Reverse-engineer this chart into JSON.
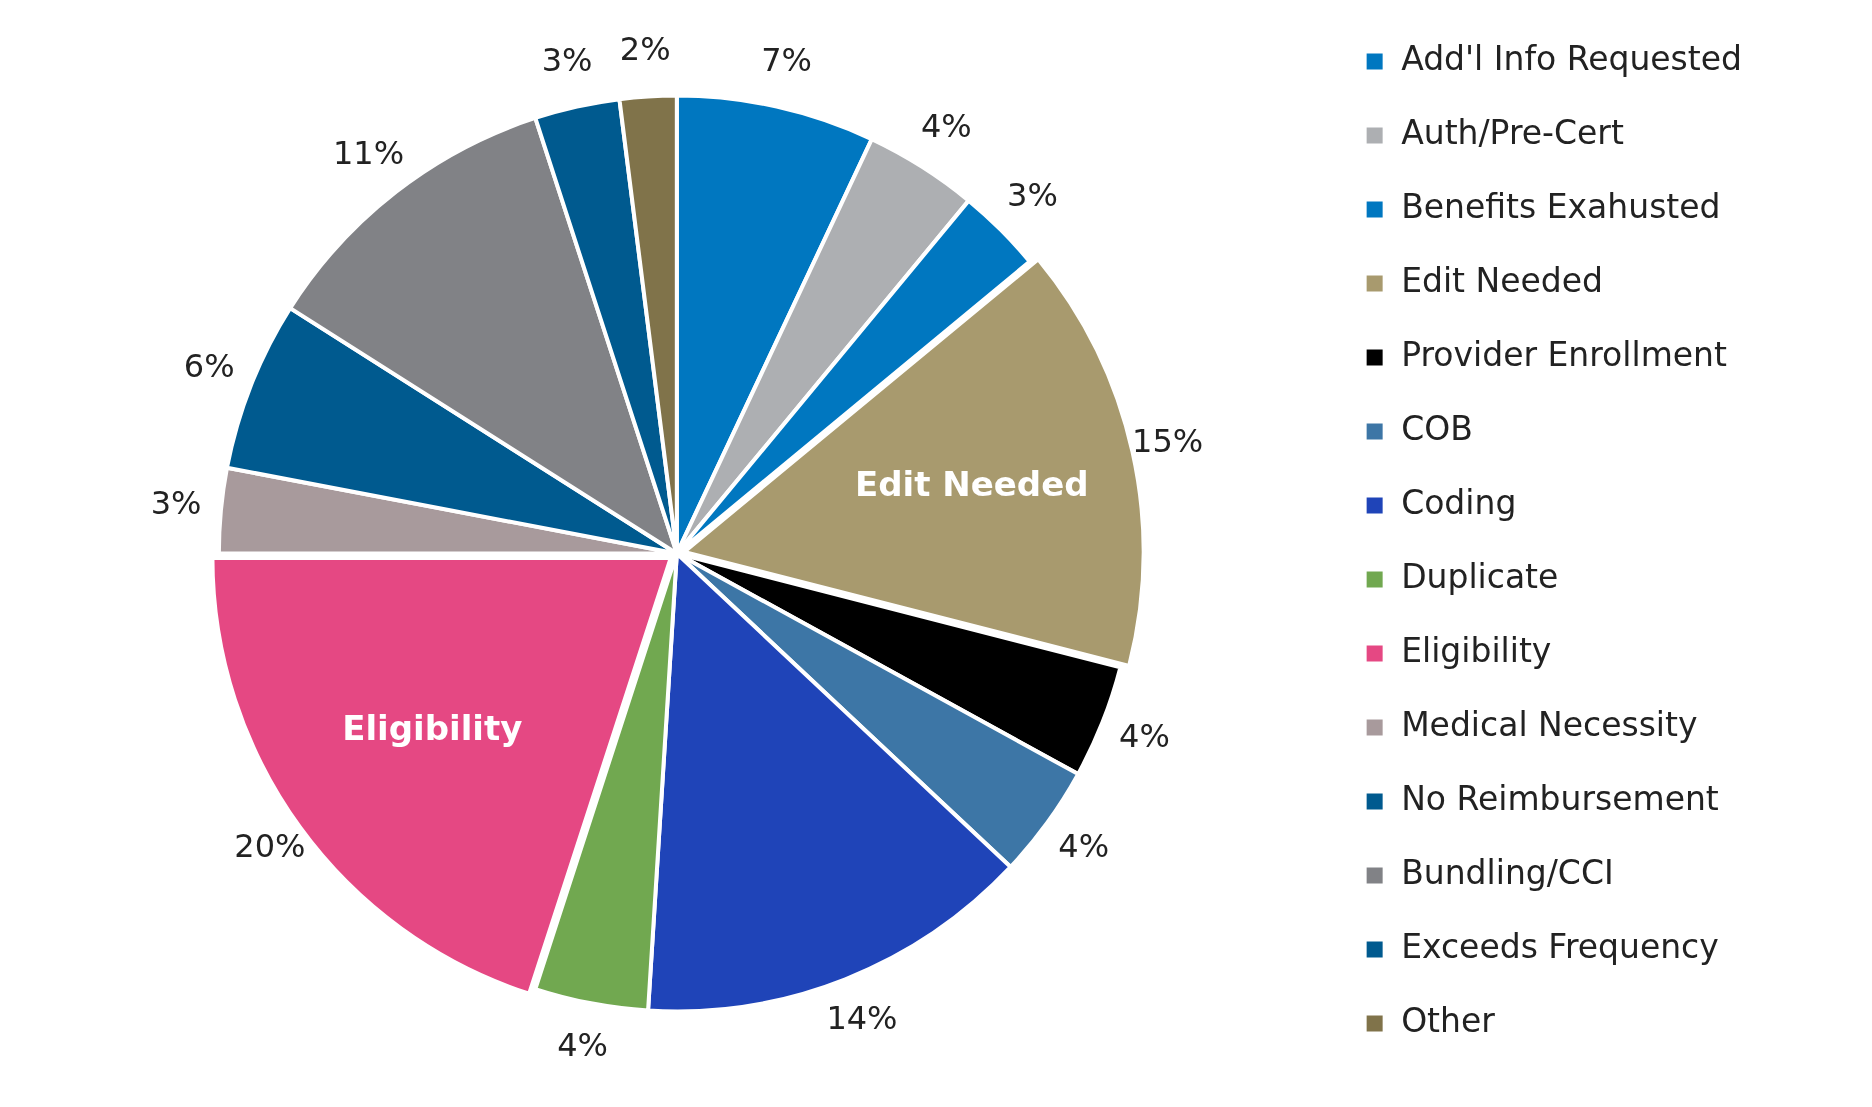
{
  "chart_data": {
    "type": "pie",
    "categories": [
      "Add'l Info Requested",
      "Auth/Pre-Cert",
      "Benefits Exahusted",
      "Edit Needed",
      "Provider Enrollment",
      "COB",
      "Coding",
      "Duplicate",
      "Eligibility",
      "Medical Necessity",
      "No Reimbursement",
      "Bundling/CCI",
      "Exceeds Frequency",
      "Other"
    ],
    "values": [
      7,
      4,
      3,
      15,
      4,
      4,
      14,
      4,
      20,
      3,
      6,
      11,
      3,
      2
    ],
    "value_labels": [
      "7%",
      "4%",
      "3%",
      "15%",
      "4%",
      "4%",
      "14%",
      "4%",
      "20%",
      "3%",
      "6%",
      "11%",
      "3%",
      "2%"
    ],
    "colors": [
      "#0077c0",
      "#adafb2",
      "#0077c0",
      "#a89a6e",
      "#000000",
      "#3d76a6",
      "#1f44b8",
      "#71a850",
      "#e54883",
      "#a89a9c",
      "#005a8f",
      "#818286",
      "#005a8f",
      "#80734a"
    ],
    "annotations": [
      {
        "text": "Edit Needed",
        "x": "Edit Needed"
      },
      {
        "text": "Eligibility",
        "x": "Eligibility"
      }
    ],
    "legend": "right"
  }
}
